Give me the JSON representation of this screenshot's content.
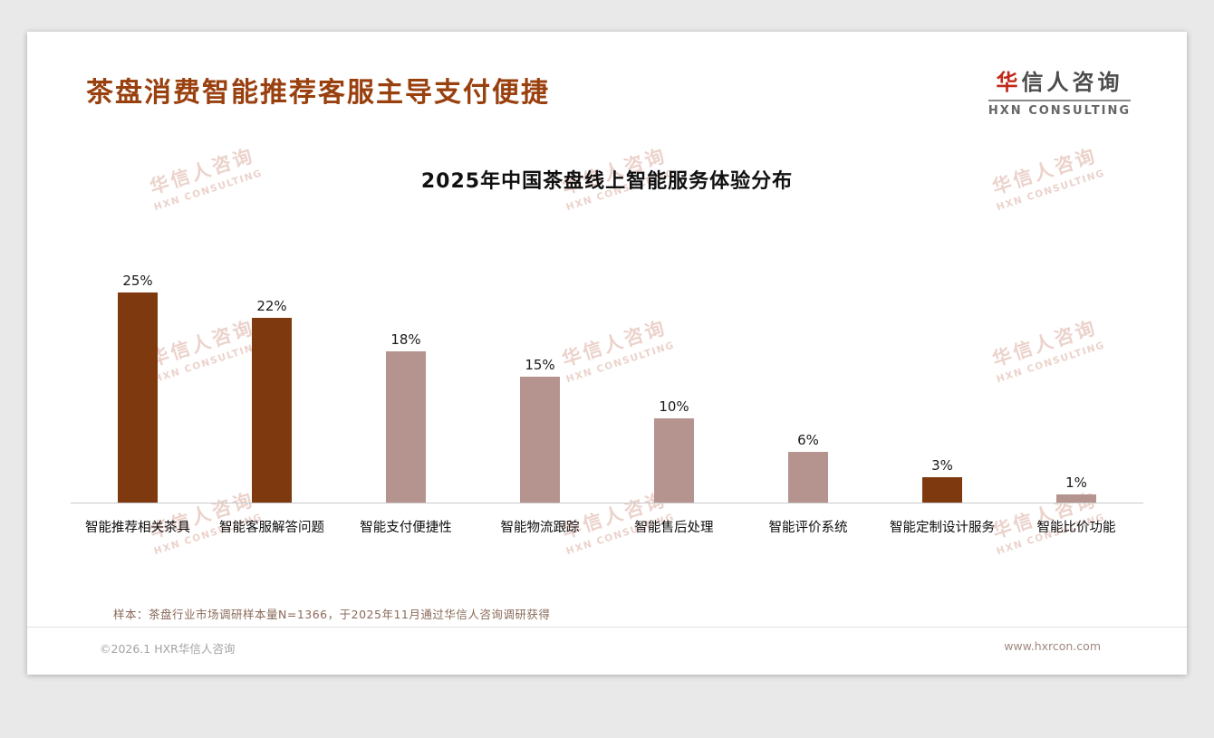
{
  "page": {
    "title": "茶盘消费智能推荐客服主导支付便捷",
    "sample_note": "样本：茶盘行业市场调研样本量N=1366，于2025年11月通过华信人咨询调研获得",
    "footer_left": "©2026.1 HXR华信人咨询",
    "footer_right": "www.hxrcon.com"
  },
  "logo": {
    "cn": "华信人咨询",
    "en": "HXN CONSULTING"
  },
  "watermark": {
    "cn": "华信人咨询",
    "en": "HXN CONSULTING"
  },
  "chart_data": {
    "type": "bar",
    "title": "2025年中国茶盘线上智能服务体验分布",
    "categories": [
      "智能推荐相关茶具",
      "智能客服解答问题",
      "智能支付便捷性",
      "智能物流跟踪",
      "智能售后处理",
      "智能评价系统",
      "智能定制设计服务",
      "智能比价功能"
    ],
    "values": [
      25,
      22,
      18,
      15,
      10,
      6,
      3,
      1
    ],
    "value_labels": [
      "25%",
      "22%",
      "18%",
      "15%",
      "10%",
      "6%",
      "3%",
      "1%"
    ],
    "bar_colors": [
      "#7e3a0e",
      "#7e3a0e",
      "#b5948f",
      "#b5948f",
      "#b5948f",
      "#b5948f",
      "#7e3a0e",
      "#b5948f"
    ],
    "ylim": [
      0,
      26
    ],
    "xlabel": "",
    "ylabel": "",
    "grid": false,
    "legend": "none"
  },
  "colors": {
    "accent_title": "#99400f",
    "dark_bar": "#7e3a0e",
    "light_bar": "#b5948f",
    "watermark": "#dcaea2"
  }
}
